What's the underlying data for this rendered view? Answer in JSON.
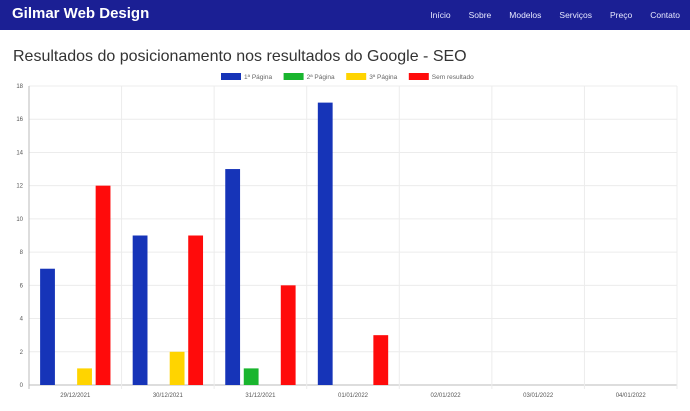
{
  "header": {
    "brand": "Gilmar Web Design",
    "nav": [
      "Início",
      "Sobre",
      "Modelos",
      "Serviços",
      "Preço",
      "Contato"
    ]
  },
  "page": {
    "title": "Resultados do posicionamento nos resultados do Google - SEO"
  },
  "colors": {
    "navbar": "#1b1f94"
  },
  "chart_data": {
    "type": "bar",
    "categories": [
      "29/12/2021",
      "30/12/2021",
      "31/12/2021",
      "01/01/2022",
      "02/01/2022",
      "03/01/2022",
      "04/01/2022"
    ],
    "series": [
      {
        "name": "1ª Página",
        "color": "#1634b8",
        "values": [
          7,
          9,
          13,
          17,
          0,
          0,
          0
        ]
      },
      {
        "name": "2ª Página",
        "color": "#19b52e",
        "values": [
          0,
          0,
          1,
          0,
          0,
          0,
          0
        ]
      },
      {
        "name": "3ª Página",
        "color": "#ffd400",
        "values": [
          1,
          2,
          0,
          0,
          0,
          0,
          0
        ]
      },
      {
        "name": "Sem resultado",
        "color": "#ff0b0b",
        "values": [
          12,
          9,
          6,
          3,
          0,
          0,
          0
        ]
      }
    ],
    "yticks": [
      0,
      2,
      4,
      6,
      8,
      10,
      12,
      14,
      16,
      18
    ],
    "ylim": [
      0,
      18
    ],
    "grid": true,
    "legend": "top-center"
  }
}
